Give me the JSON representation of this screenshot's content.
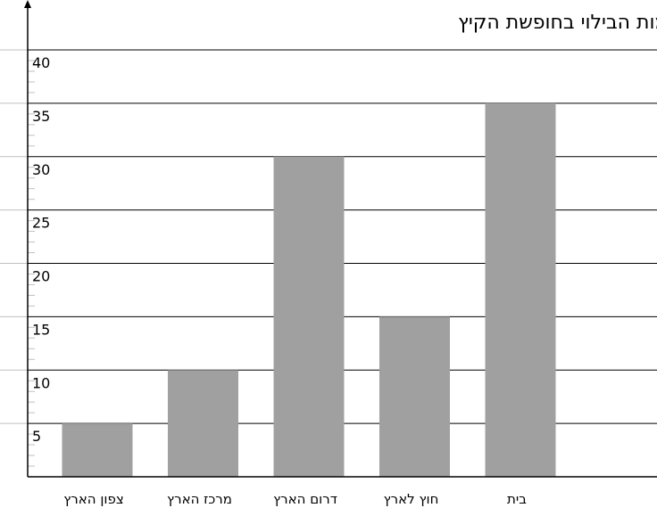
{
  "chart_data": {
    "type": "bar",
    "title": "התפלגות מקומות הבילוי בחופשת הקיץ",
    "xlabel": "",
    "ylabel": "",
    "categories": [
      "צפון הארץ",
      "מרכז הארץ",
      "דרום הארץ",
      "חוץ לארץ",
      "בית"
    ],
    "values": [
      5,
      10,
      30,
      15,
      35
    ],
    "ylim": [
      0,
      40
    ],
    "yticks": [
      5,
      10,
      15,
      20,
      25,
      30,
      35,
      40
    ],
    "grid": true,
    "legend": "none",
    "bar_color": "#a0a0a0",
    "grid_color": "#000000",
    "minor_tick_color": "#c0c0c0"
  }
}
